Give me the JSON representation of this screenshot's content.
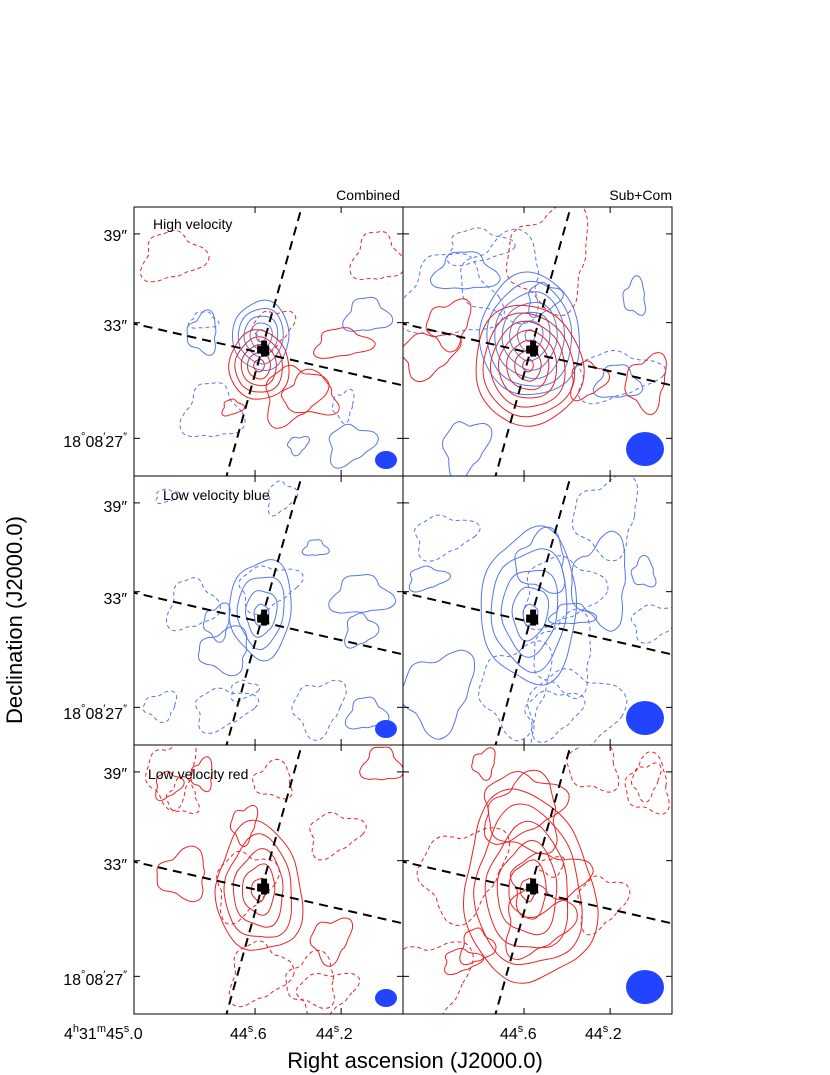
{
  "chart_data": {
    "type": "contour",
    "xlabel": "Right ascension (J2000.0)",
    "ylabel": "Declination (J2000.0)",
    "column_titles": [
      "Combined",
      "Sub+Com"
    ],
    "row_labels": [
      "High velocity",
      "Low velocity blue",
      "Low velocity red"
    ],
    "x_ticks": {
      "left": [
        "4h31m45s.0",
        "44s.6",
        "44s.2"
      ],
      "right": [
        "44s.6",
        "44s.2"
      ]
    },
    "y_ticks": [
      "39″",
      "33″",
      "18°08′27″"
    ],
    "tick_parts": {
      "ra_first": {
        "h": "4",
        "hs": "h",
        "m": "31",
        "ms": "m",
        "s": "45",
        "ss": "s",
        "frac": ".0"
      },
      "ra_a": {
        "s": "44",
        "ss": "s",
        "frac": ".6"
      },
      "ra_b": {
        "s": "44",
        "ss": "s",
        "frac": ".2"
      },
      "dec_hi": "39″",
      "dec_mid": "33″",
      "dec_lo": {
        "deg": "18",
        "degsym": "°",
        "min": "08",
        "minsym": "′",
        "sec": "27",
        "secsym": "″"
      }
    },
    "colors": {
      "blue": "#3355ff",
      "blue_contour": "#5577ee",
      "red": "#ee2222",
      "dashed_axis": "#000000",
      "beam": "#2244ff"
    },
    "panels": [
      {
        "row": 0,
        "col": 0,
        "blue_peak": [
          44.52,
          33.6
        ],
        "red_peak": [
          44.55,
          31.5
        ],
        "contour_levels": 5,
        "beam": "small"
      },
      {
        "row": 0,
        "col": 1,
        "blue_peak": [
          44.52,
          33.6
        ],
        "red_peak": [
          44.55,
          31.5
        ],
        "contour_levels": 7,
        "beam": "large"
      },
      {
        "row": 1,
        "col": 0,
        "blue_peak": [
          44.55,
          32.5
        ],
        "contour_levels": 4,
        "beam": "small"
      },
      {
        "row": 1,
        "col": 1,
        "blue_peak": [
          44.52,
          32.4
        ],
        "contour_levels": 5,
        "beam": "large"
      },
      {
        "row": 2,
        "col": 0,
        "red_peak": [
          44.55,
          32.5
        ],
        "contour_levels": 5,
        "beam": "small"
      },
      {
        "row": 2,
        "col": 1,
        "red_peak": [
          44.55,
          32.3
        ],
        "contour_levels": 6,
        "beam": "large"
      }
    ]
  }
}
